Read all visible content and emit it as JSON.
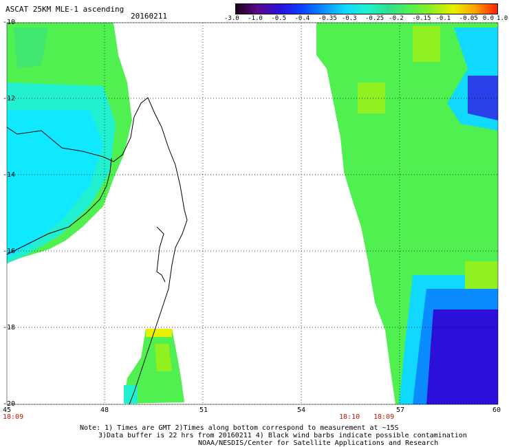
{
  "header": {
    "title": "ASCAT 25KM MLE-1 ascending",
    "date": "20160211"
  },
  "colorbar": {
    "labels": [
      "-3.0",
      "-1.0",
      "-0.5",
      "-0.4",
      "-0.35",
      "-0.3",
      "-0.25",
      "-0.2",
      "-0.15",
      "-0.1",
      "-0.05",
      "0.0",
      "1.0"
    ],
    "colors": [
      "#1a001a",
      "#5a0a8a",
      "#2a10d8",
      "#0a40ff",
      "#0a8cff",
      "#10d8ff",
      "#20f0d0",
      "#30e090",
      "#50f050",
      "#90f020",
      "#e8f000",
      "#ffa000",
      "#ff2000"
    ]
  },
  "axes": {
    "lat_labels": [
      "-10",
      "-12",
      "-14",
      "-16",
      "-18",
      "-20"
    ],
    "lon_labels": [
      "45",
      "48",
      "51",
      "54",
      "57",
      "60"
    ],
    "lat_range": [
      -20,
      -10
    ],
    "lon_range": [
      45,
      60
    ],
    "grid": "dotted"
  },
  "time_labels": [
    "18:09",
    "18:10",
    "18:09"
  ],
  "notes": [
    "Note: 1) Times are GMT 2)Times along bottom correspond to measurement at ~15S",
    "3)Data buffer is 22 hrs from 20160211 4) Black wind barbs indicate possible contamination",
    "NOAA/NESDIS/Center for Satellite Applications and Research"
  ]
}
